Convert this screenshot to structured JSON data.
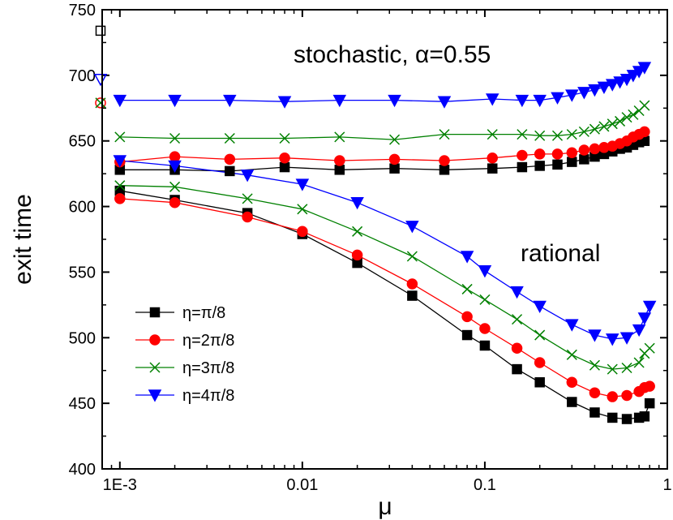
{
  "chart_data": {
    "type": "line",
    "xscale": "log",
    "xlim": [
      0.0008,
      1
    ],
    "ylim": [
      400,
      750
    ],
    "xlabel": "μ",
    "ylabel": "exit time",
    "xticks": [
      {
        "value": 0.001,
        "label": "1E-3"
      },
      {
        "value": 0.01,
        "label": "0.01"
      },
      {
        "value": 0.1,
        "label": "0.1"
      },
      {
        "value": 1,
        "label": "1"
      }
    ],
    "yticks": [
      400,
      450,
      500,
      550,
      600,
      650,
      700,
      750
    ],
    "annotations": [
      {
        "id": "stochastic",
        "text": "stochastic, α=0.55"
      },
      {
        "id": "rational",
        "text": "rational"
      }
    ],
    "legend_position": "bottom-left",
    "series": [
      {
        "name": "η=π/8",
        "marker": "square",
        "color": "#000000",
        "rational": [
          [
            0.001,
            612
          ],
          [
            0.002,
            605
          ],
          [
            0.005,
            595
          ],
          [
            0.01,
            579
          ],
          [
            0.02,
            557
          ],
          [
            0.04,
            532
          ],
          [
            0.08,
            502
          ],
          [
            0.1,
            494
          ],
          [
            0.15,
            476
          ],
          [
            0.2,
            466
          ],
          [
            0.3,
            451
          ],
          [
            0.4,
            443
          ],
          [
            0.5,
            439
          ],
          [
            0.6,
            438
          ],
          [
            0.7,
            439
          ],
          [
            0.75,
            440
          ],
          [
            0.8,
            450
          ]
        ],
        "stochastic": [
          [
            0.001,
            628
          ],
          [
            0.002,
            628
          ],
          [
            0.004,
            627
          ],
          [
            0.008,
            630
          ],
          [
            0.016,
            628
          ],
          [
            0.032,
            629
          ],
          [
            0.06,
            628
          ],
          [
            0.11,
            629
          ],
          [
            0.16,
            630
          ],
          [
            0.2,
            631
          ],
          [
            0.25,
            632
          ],
          [
            0.3,
            634
          ],
          [
            0.35,
            636
          ],
          [
            0.4,
            638
          ],
          [
            0.45,
            640
          ],
          [
            0.5,
            642
          ],
          [
            0.55,
            644
          ],
          [
            0.6,
            645
          ],
          [
            0.65,
            647
          ],
          [
            0.7,
            649
          ],
          [
            0.75,
            650
          ]
        ]
      },
      {
        "name": "η=2π/8",
        "marker": "circle",
        "color": "#ff0000",
        "rational": [
          [
            0.001,
            606
          ],
          [
            0.002,
            603
          ],
          [
            0.005,
            592
          ],
          [
            0.01,
            581
          ],
          [
            0.02,
            563
          ],
          [
            0.04,
            541
          ],
          [
            0.08,
            516
          ],
          [
            0.1,
            507
          ],
          [
            0.15,
            492
          ],
          [
            0.2,
            481
          ],
          [
            0.3,
            466
          ],
          [
            0.4,
            458
          ],
          [
            0.5,
            455
          ],
          [
            0.6,
            456
          ],
          [
            0.7,
            459
          ],
          [
            0.75,
            462
          ],
          [
            0.8,
            463
          ]
        ],
        "stochastic": [
          [
            0.001,
            634
          ],
          [
            0.002,
            638
          ],
          [
            0.004,
            636
          ],
          [
            0.008,
            637
          ],
          [
            0.016,
            635
          ],
          [
            0.032,
            636
          ],
          [
            0.06,
            635
          ],
          [
            0.11,
            637
          ],
          [
            0.16,
            639
          ],
          [
            0.2,
            640
          ],
          [
            0.25,
            640
          ],
          [
            0.3,
            641
          ],
          [
            0.35,
            643
          ],
          [
            0.4,
            644
          ],
          [
            0.45,
            645
          ],
          [
            0.5,
            646
          ],
          [
            0.55,
            648
          ],
          [
            0.6,
            650
          ],
          [
            0.65,
            653
          ],
          [
            0.7,
            655
          ],
          [
            0.75,
            657
          ]
        ]
      },
      {
        "name": "η=3π/8",
        "marker": "x",
        "color": "#008000",
        "rational": [
          [
            0.001,
            616
          ],
          [
            0.002,
            615
          ],
          [
            0.005,
            606
          ],
          [
            0.01,
            598
          ],
          [
            0.02,
            581
          ],
          [
            0.04,
            562
          ],
          [
            0.08,
            537
          ],
          [
            0.1,
            529
          ],
          [
            0.15,
            514
          ],
          [
            0.2,
            502
          ],
          [
            0.3,
            487
          ],
          [
            0.4,
            479
          ],
          [
            0.5,
            476
          ],
          [
            0.6,
            477
          ],
          [
            0.7,
            481
          ],
          [
            0.75,
            488
          ],
          [
            0.8,
            492
          ]
        ],
        "stochastic": [
          [
            0.001,
            653
          ],
          [
            0.002,
            652
          ],
          [
            0.004,
            652
          ],
          [
            0.008,
            652
          ],
          [
            0.016,
            653
          ],
          [
            0.032,
            651
          ],
          [
            0.06,
            655
          ],
          [
            0.11,
            655
          ],
          [
            0.16,
            655
          ],
          [
            0.2,
            654
          ],
          [
            0.25,
            654
          ],
          [
            0.3,
            655
          ],
          [
            0.35,
            657
          ],
          [
            0.4,
            659
          ],
          [
            0.45,
            661
          ],
          [
            0.5,
            663
          ],
          [
            0.55,
            665
          ],
          [
            0.6,
            668
          ],
          [
            0.65,
            670
          ],
          [
            0.7,
            673
          ],
          [
            0.75,
            677
          ]
        ]
      },
      {
        "name": "η=4π/8",
        "marker": "triangle-down",
        "color": "#0000ff",
        "rational": [
          [
            0.001,
            635
          ],
          [
            0.002,
            631
          ],
          [
            0.005,
            624
          ],
          [
            0.01,
            617
          ],
          [
            0.02,
            603
          ],
          [
            0.04,
            585
          ],
          [
            0.08,
            562
          ],
          [
            0.1,
            551
          ],
          [
            0.15,
            535
          ],
          [
            0.2,
            524
          ],
          [
            0.3,
            510
          ],
          [
            0.4,
            502
          ],
          [
            0.5,
            499
          ],
          [
            0.6,
            500
          ],
          [
            0.7,
            506
          ],
          [
            0.75,
            515
          ],
          [
            0.8,
            524
          ]
        ],
        "stochastic": [
          [
            0.001,
            681
          ],
          [
            0.002,
            681
          ],
          [
            0.004,
            681
          ],
          [
            0.008,
            680
          ],
          [
            0.016,
            681
          ],
          [
            0.032,
            681
          ],
          [
            0.06,
            680
          ],
          [
            0.11,
            682
          ],
          [
            0.16,
            681
          ],
          [
            0.2,
            681
          ],
          [
            0.25,
            683
          ],
          [
            0.3,
            685
          ],
          [
            0.35,
            687
          ],
          [
            0.4,
            689
          ],
          [
            0.45,
            691
          ],
          [
            0.5,
            693
          ],
          [
            0.55,
            695
          ],
          [
            0.6,
            697
          ],
          [
            0.65,
            700
          ],
          [
            0.7,
            703
          ],
          [
            0.75,
            706
          ]
        ]
      }
    ],
    "open_markers_on_y_axis": [
      {
        "marker": "square",
        "color": "#000000",
        "y": 734
      },
      {
        "marker": "triangle-down",
        "color": "#0000ff",
        "y": 697
      },
      {
        "marker": "circle",
        "color": "#ff0000",
        "y": 679
      },
      {
        "marker": "x",
        "color": "#008000",
        "y": 679
      }
    ]
  }
}
